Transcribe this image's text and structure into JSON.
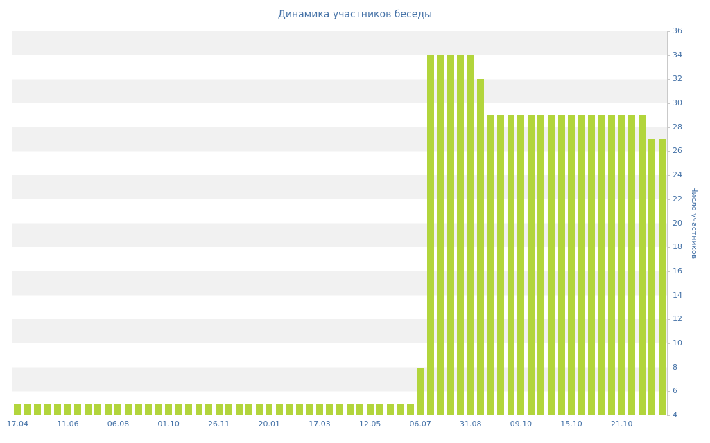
{
  "chart_data": {
    "type": "bar",
    "title": "Динамика участников беседы",
    "xlabel": "",
    "ylabel": "Число участников",
    "ylim": [
      4,
      36
    ],
    "y_ticks": [
      4,
      6,
      8,
      10,
      12,
      14,
      16,
      18,
      20,
      22,
      24,
      26,
      28,
      30,
      32,
      34,
      36
    ],
    "x_tick_labels": [
      "17.04",
      "11.06",
      "06.08",
      "01.10",
      "26.11",
      "20.01",
      "17.03",
      "12.05",
      "06.07",
      "31.08",
      "09.10",
      "15.10",
      "21.10"
    ],
    "x_tick_positions": [
      0,
      5,
      10,
      15,
      20,
      25,
      30,
      35,
      40,
      45,
      50,
      55,
      60
    ],
    "values": [
      5,
      5,
      5,
      5,
      5,
      5,
      5,
      5,
      5,
      5,
      5,
      5,
      5,
      5,
      5,
      5,
      5,
      5,
      5,
      5,
      5,
      5,
      5,
      5,
      5,
      5,
      5,
      5,
      5,
      5,
      5,
      5,
      5,
      5,
      5,
      5,
      5,
      5,
      5,
      5,
      8,
      34,
      34,
      34,
      34,
      34,
      32,
      29,
      29,
      29,
      29,
      29,
      29,
      29,
      29,
      29,
      29,
      29,
      29,
      29,
      29,
      29,
      29,
      27,
      27
    ],
    "legend": "none",
    "grid": "alternating horizontal bands",
    "colors": {
      "bar": "#b2d53c",
      "band": "#f1f1f1",
      "label_text": "#4572a7",
      "axis_line": "#c9c9c9",
      "background": "#ffffff"
    }
  }
}
